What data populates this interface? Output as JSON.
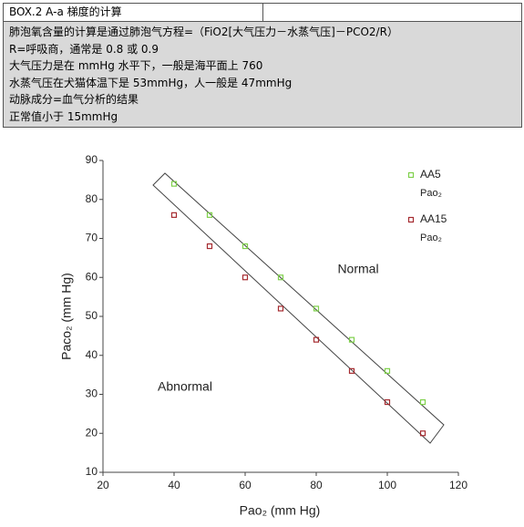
{
  "box": {
    "title": "BOX.2 A-a 梯度的计算",
    "lines": [
      "肺泡氧含量的计算是通过肺泡气方程=（FiO2[大气压力－水蒸气压]－PCO2/R）",
      "R=呼吸商，通常是 0.8 或 0.9",
      "大气压力是在 mmHg 水平下，一般是海平面上 760",
      "水蒸气压在犬猫体温下是 53mmHg，人一般是 47mmHg",
      "动脉成分=血气分析的结果",
      "正常值小于 15mmHg"
    ]
  },
  "chart_data": {
    "type": "scatter",
    "x_label": "Pao₂ (mm Hg)",
    "y_label": "Paco₂ (mm Hg)",
    "x": [
      40,
      50,
      60,
      70,
      80,
      90,
      100,
      110
    ],
    "series": [
      {
        "name": "AA5",
        "unit": "Pao₂",
        "color": "#7ed04a",
        "values": [
          84,
          76,
          68,
          60,
          52,
          44,
          36,
          28
        ]
      },
      {
        "name": "AA15",
        "unit": "Pao₂",
        "color": "#a52a2f",
        "values": [
          76,
          68,
          60,
          52,
          44,
          36,
          28,
          20
        ]
      }
    ],
    "annotations": [
      "Normal",
      "Abnormal"
    ],
    "xlim": [
      20,
      120
    ],
    "xticks": [
      20,
      40,
      60,
      80,
      100,
      120
    ],
    "ylim": [
      10,
      90
    ],
    "yticks": [
      10,
      20,
      30,
      40,
      50,
      60,
      70,
      80,
      90
    ],
    "grid": false,
    "legend": "upper right"
  }
}
